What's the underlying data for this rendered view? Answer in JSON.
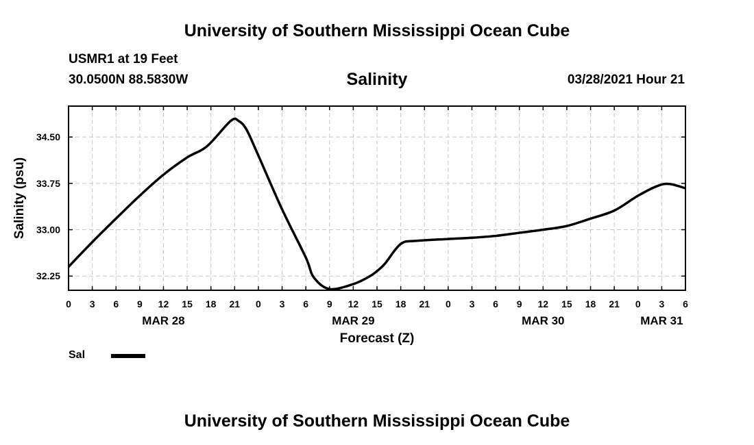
{
  "header": {
    "title": "University of Southern Mississippi Ocean Cube",
    "station": "USMR1 at 19 Feet",
    "coords": "30.0500N  88.5830W",
    "parameter": "Salinity",
    "issued": "03/28/2021 Hour 21"
  },
  "footer": {
    "title": "University of Southern Mississippi Ocean Cube"
  },
  "legend": {
    "label": "Sal"
  },
  "colors": {
    "line": "#000000",
    "grid": "#c8c8c8",
    "background": "#ffffff"
  },
  "chart_data": {
    "type": "line",
    "title": "Salinity",
    "xlabel": "Forecast (Z)",
    "ylabel": "Salinity (psu)",
    "grid": true,
    "legend_position": "bottom-left",
    "xlim": [
      0,
      78
    ],
    "ylim": [
      32.02,
      35.0
    ],
    "y_ticks": [
      32.25,
      33.0,
      33.75,
      34.5
    ],
    "y_tick_labels": [
      "32.25",
      "33.00",
      "33.75",
      "34.50"
    ],
    "x_ticks": [
      0,
      3,
      6,
      9,
      12,
      15,
      18,
      21,
      24,
      27,
      30,
      33,
      36,
      39,
      42,
      45,
      48,
      51,
      54,
      57,
      60,
      63,
      66,
      69,
      72,
      75,
      78
    ],
    "x_tick_labels": [
      "0",
      "3",
      "6",
      "9",
      "12",
      "15",
      "18",
      "21",
      "0",
      "3",
      "6",
      "9",
      "12",
      "15",
      "18",
      "21",
      "0",
      "3",
      "6",
      "9",
      "12",
      "15",
      "18",
      "21",
      "0",
      "3",
      "6"
    ],
    "date_labels": [
      {
        "x": 12,
        "label": "MAR 28"
      },
      {
        "x": 36,
        "label": "MAR 29"
      },
      {
        "x": 60,
        "label": "MAR 30"
      },
      {
        "x": 75,
        "label": "MAR 31"
      }
    ],
    "series": [
      {
        "name": "Sal",
        "x": [
          0,
          3,
          6,
          9,
          12,
          15,
          17.5,
          20.5,
          21.5,
          22.5,
          24,
          27,
          30,
          31,
          33,
          36,
          38,
          39,
          40,
          42,
          44,
          48,
          51,
          54,
          57,
          60,
          63,
          66,
          69,
          72,
          74.5,
          76,
          78
        ],
        "y": [
          32.4,
          32.8,
          33.18,
          33.55,
          33.89,
          34.17,
          34.35,
          34.76,
          34.76,
          34.62,
          34.2,
          33.33,
          32.55,
          32.23,
          32.04,
          32.12,
          32.24,
          32.33,
          32.45,
          32.77,
          32.82,
          32.85,
          32.87,
          32.9,
          32.95,
          33.0,
          33.06,
          33.18,
          33.31,
          33.55,
          33.71,
          33.74,
          33.67
        ]
      }
    ]
  }
}
